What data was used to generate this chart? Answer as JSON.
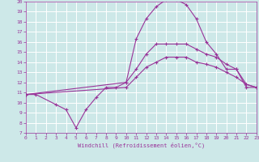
{
  "xlabel": "Windchill (Refroidissement éolien,°C)",
  "bg_color": "#cde8e8",
  "grid_color": "#ffffff",
  "line_color": "#993399",
  "xmin": 0,
  "xmax": 23,
  "ymin": 7,
  "ymax": 20,
  "lines": [
    {
      "x": [
        0,
        1,
        3,
        4,
        5,
        6,
        7,
        8,
        9,
        10,
        11,
        12,
        13,
        14,
        15,
        16,
        17,
        18,
        19,
        20,
        21,
        22,
        23
      ],
      "y": [
        10.8,
        10.8,
        9.8,
        9.3,
        7.5,
        9.3,
        10.5,
        11.5,
        11.5,
        12.0,
        16.3,
        18.3,
        19.5,
        20.2,
        20.2,
        19.7,
        18.3,
        16.0,
        14.8,
        13.3,
        13.3,
        11.5,
        11.5
      ]
    },
    {
      "x": [
        0,
        10,
        11,
        12,
        13,
        14,
        15,
        16,
        17,
        18,
        19,
        20,
        21,
        22,
        23
      ],
      "y": [
        10.8,
        12.0,
        13.3,
        14.8,
        15.8,
        15.8,
        15.8,
        15.8,
        15.3,
        14.8,
        14.5,
        13.8,
        13.3,
        11.8,
        11.5
      ]
    },
    {
      "x": [
        0,
        10,
        11,
        12,
        13,
        14,
        15,
        16,
        17,
        18,
        19,
        20,
        21,
        22,
        23
      ],
      "y": [
        10.8,
        11.5,
        12.5,
        13.5,
        14.0,
        14.5,
        14.5,
        14.5,
        14.0,
        13.8,
        13.5,
        13.0,
        12.5,
        11.8,
        11.5
      ]
    }
  ],
  "font_family": "monospace"
}
